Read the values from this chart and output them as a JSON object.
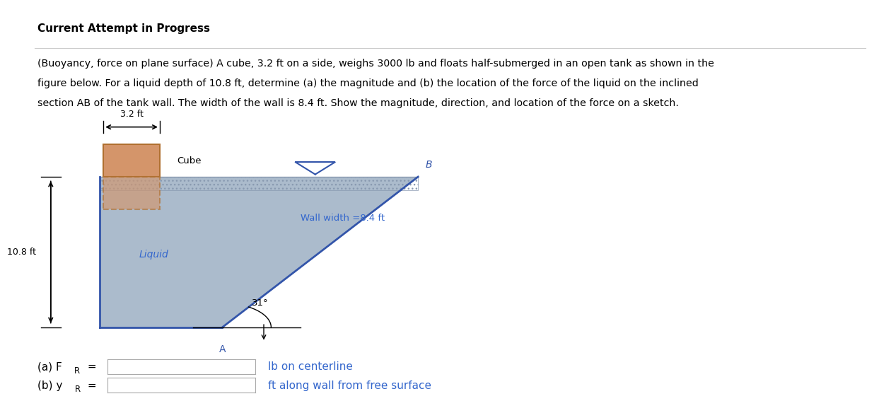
{
  "title": "Current Attempt in Progress",
  "line1": "(Buoyancy, force on plane surface) A cube, 3.2 ft on a side, weighs 3000 lb and floats half-submerged in an open tank as shown in the",
  "line2": "figure below. For a liquid depth of 10.8 ft, determine (a) the magnitude and (b) the location of the force of the liquid on the inclined",
  "line3": "section AB of the tank wall. The width of the wall is 8.4 ft. Show the magnitude, direction, and location of the force on a sketch.",
  "label_3_2": "3.2 ft",
  "label_10_8": "10.8 ft",
  "label_cube": "Cube",
  "label_liquid": "Liquid",
  "label_wall_width": "Wall width =8.4 ft",
  "label_angle": "31",
  "label_A": "A",
  "label_B": "B",
  "label_a_unit": "lb on centerline",
  "label_b_unit": "ft along wall from free surface",
  "bg_color": "#ffffff",
  "liquid_color": "#9dafc4",
  "liquid_hatch_color": "#8899b0",
  "cube_face_color": "#d4956a",
  "cube_edge_color": "#b07030",
  "tank_line_color": "#3355aa",
  "text_blue": "#3366cc",
  "title_color": "#000000",
  "body_text_color": "#000000",
  "sep_line_color": "#4a90d9",
  "gray_line_color": "#cccccc"
}
